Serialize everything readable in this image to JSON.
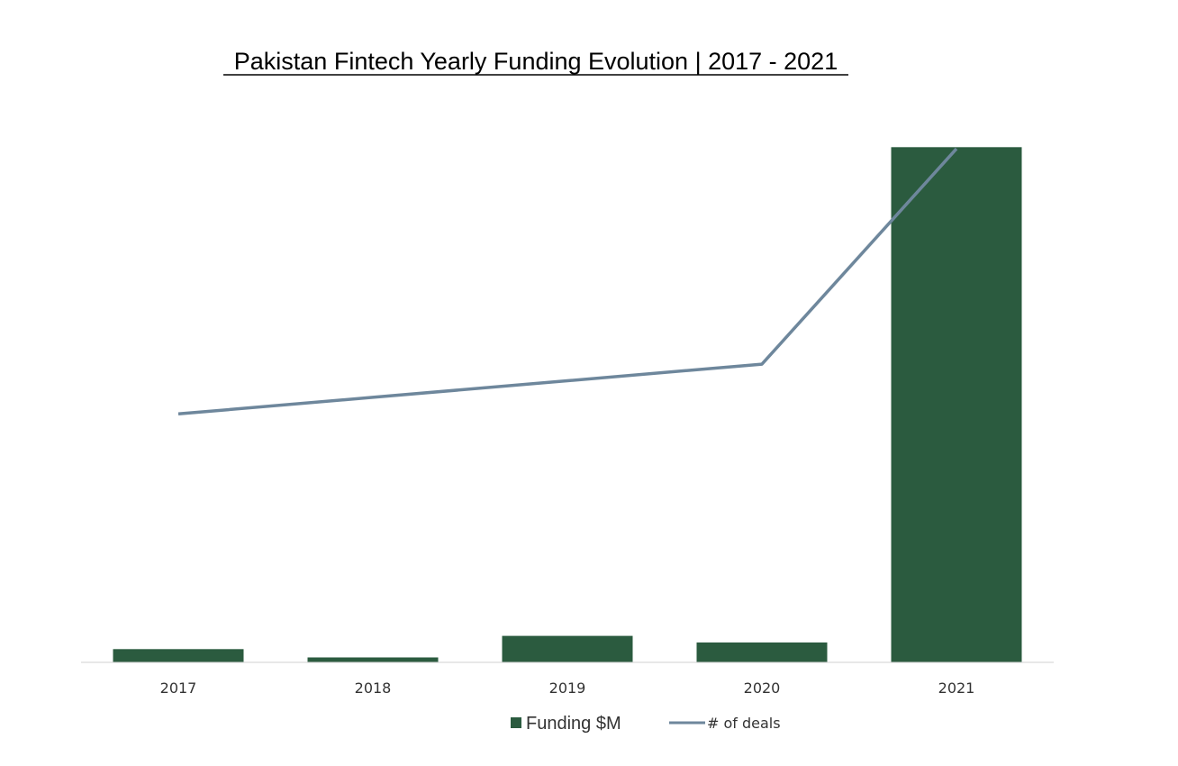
{
  "chart_data": {
    "type": "bar",
    "title": "Pakistan Fintech Yearly Funding Evolution | 2017 - 2021",
    "categories": [
      "2017",
      "2018",
      "2019",
      "2020",
      "2021"
    ],
    "series": [
      {
        "name": "Funding $M",
        "type": "bar",
        "color": "#2b5b3f",
        "values": [
          8,
          3,
          16,
          12,
          311
        ]
      },
      {
        "name": "# of deals",
        "type": "line",
        "color": "#6e879c",
        "values": [
          15,
          16,
          17,
          18,
          31
        ]
      }
    ],
    "y1lim": [
      0,
      340
    ],
    "y2lim": [
      0,
      34
    ],
    "xlabel": "",
    "ylabel": "",
    "grid": false,
    "legend": "bottom"
  }
}
